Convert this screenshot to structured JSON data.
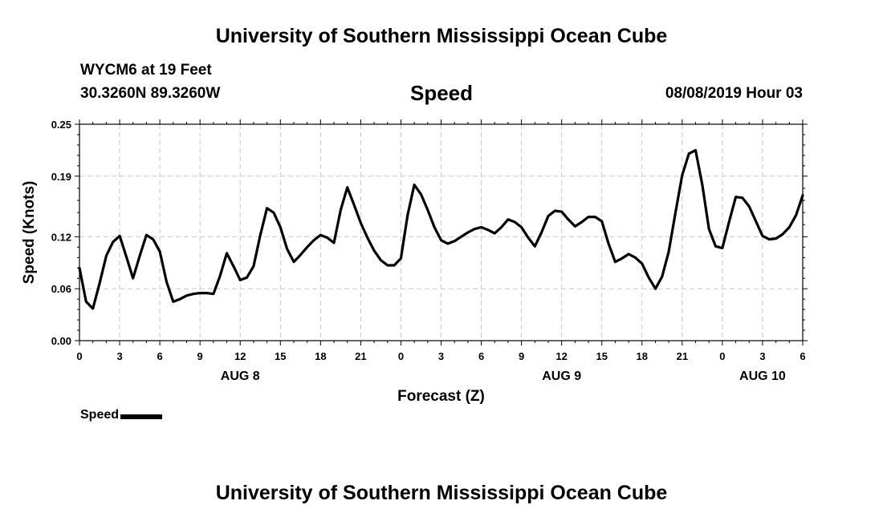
{
  "header": {
    "title": "University of Southern Mississippi Ocean Cube",
    "station": "WYCM6 at 19 Feet",
    "coords": "30.3260N 89.3260W",
    "datetime": "08/08/2019 Hour 03"
  },
  "footer": {
    "title": "University of Southern Mississippi Ocean Cube"
  },
  "legend": {
    "label": "Speed",
    "color": "#000000"
  },
  "chart_data": {
    "type": "line",
    "title": "Speed",
    "xlabel": "Forecast (Z)",
    "ylabel": "Speed (Knots)",
    "ylim": [
      0,
      0.25
    ],
    "yticks": [
      "0.00",
      "0.06",
      "0.12",
      "0.19",
      "0.25"
    ],
    "xlim": [
      0,
      54
    ],
    "xticks": [
      {
        "x": 0,
        "label": "0"
      },
      {
        "x": 3,
        "label": "3"
      },
      {
        "x": 6,
        "label": "6"
      },
      {
        "x": 9,
        "label": "9"
      },
      {
        "x": 12,
        "label": "12"
      },
      {
        "x": 15,
        "label": "15"
      },
      {
        "x": 18,
        "label": "18"
      },
      {
        "x": 21,
        "label": "21"
      },
      {
        "x": 24,
        "label": "0"
      },
      {
        "x": 27,
        "label": "3"
      },
      {
        "x": 30,
        "label": "6"
      },
      {
        "x": 33,
        "label": "9"
      },
      {
        "x": 36,
        "label": "12"
      },
      {
        "x": 39,
        "label": "15"
      },
      {
        "x": 42,
        "label": "18"
      },
      {
        "x": 45,
        "label": "21"
      },
      {
        "x": 48,
        "label": "0"
      },
      {
        "x": 51,
        "label": "3"
      },
      {
        "x": 54,
        "label": "6"
      }
    ],
    "day_labels": [
      {
        "x": 12,
        "label": "AUG 8"
      },
      {
        "x": 36,
        "label": "AUG 9"
      },
      {
        "x": 51,
        "label": "AUG 10"
      }
    ],
    "grid": true,
    "legend_position": "bottom-left",
    "series": [
      {
        "name": "Speed",
        "color": "#000000",
        "x": [
          0,
          0.5,
          1,
          1.5,
          2,
          2.5,
          3,
          3.5,
          4,
          4.5,
          5,
          5.5,
          6,
          6.5,
          7,
          7.5,
          8,
          8.5,
          9,
          9.5,
          10,
          10.5,
          11,
          11.5,
          12,
          12.5,
          13,
          13.5,
          14,
          14.5,
          15,
          15.5,
          16,
          16.5,
          17,
          17.5,
          18,
          18.5,
          19,
          19.5,
          20,
          20.5,
          21,
          21.5,
          22,
          22.5,
          23,
          23.5,
          24,
          24.5,
          25,
          25.5,
          26,
          26.5,
          27,
          27.5,
          28,
          28.5,
          29,
          29.5,
          30,
          30.5,
          31,
          31.5,
          32,
          32.5,
          33,
          33.5,
          34,
          34.5,
          35,
          35.5,
          36,
          36.5,
          37,
          37.5,
          38,
          38.5,
          39,
          39.5,
          40,
          40.5,
          41,
          41.5,
          42,
          42.5,
          43,
          43.5,
          44,
          44.5,
          45,
          45.5,
          46,
          46.5,
          47,
          47.5,
          48,
          48.5,
          49,
          49.5,
          50,
          50.5,
          51,
          51.5,
          52,
          52.5,
          53,
          53.5,
          54
        ],
        "values": [
          0.084,
          0.045,
          0.037,
          0.066,
          0.098,
          0.114,
          0.121,
          0.097,
          0.072,
          0.098,
          0.122,
          0.117,
          0.103,
          0.068,
          0.045,
          0.048,
          0.052,
          0.054,
          0.055,
          0.055,
          0.054,
          0.075,
          0.101,
          0.086,
          0.07,
          0.073,
          0.086,
          0.122,
          0.153,
          0.148,
          0.131,
          0.106,
          0.091,
          0.099,
          0.108,
          0.116,
          0.122,
          0.119,
          0.113,
          0.151,
          0.177,
          0.157,
          0.136,
          0.119,
          0.104,
          0.093,
          0.087,
          0.087,
          0.095,
          0.145,
          0.18,
          0.169,
          0.151,
          0.131,
          0.116,
          0.112,
          0.115,
          0.12,
          0.125,
          0.129,
          0.131,
          0.128,
          0.124,
          0.131,
          0.14,
          0.137,
          0.131,
          0.119,
          0.109,
          0.125,
          0.144,
          0.15,
          0.149,
          0.14,
          0.132,
          0.137,
          0.143,
          0.143,
          0.138,
          0.112,
          0.091,
          0.095,
          0.1,
          0.096,
          0.089,
          0.073,
          0.06,
          0.074,
          0.103,
          0.148,
          0.191,
          0.216,
          0.22,
          0.18,
          0.129,
          0.109,
          0.107,
          0.137,
          0.166,
          0.165,
          0.155,
          0.138,
          0.121,
          0.117,
          0.118,
          0.123,
          0.131,
          0.145,
          0.168
        ]
      }
    ]
  }
}
